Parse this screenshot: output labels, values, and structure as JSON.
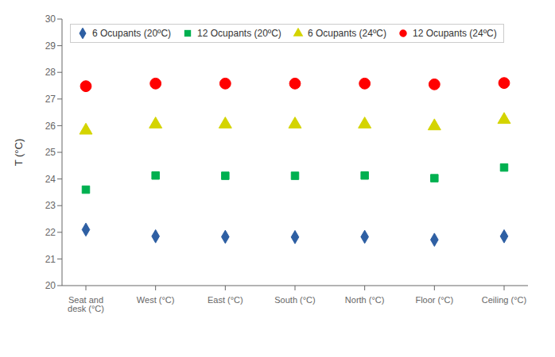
{
  "chart_data": {
    "type": "line",
    "categories": [
      "Seat and desk (°C)",
      "West (°C)",
      "East (°C)",
      "South (°C)",
      "North (°C)",
      "Floor (°C)",
      "Ceiling (°C)"
    ],
    "series": [
      {
        "name": "6 Ocupants (20ºC)",
        "color": "#2e5fa3",
        "marker": "diamond",
        "line_style": "none",
        "values": [
          22.1,
          21.85,
          21.83,
          21.82,
          21.83,
          21.72,
          21.85
        ]
      },
      {
        "name": "12 Ocupants (20ºC)",
        "color": "#00b050",
        "marker": "square",
        "line_style": "none",
        "values": [
          23.6,
          24.13,
          24.12,
          24.12,
          24.13,
          24.03,
          24.43
        ]
      },
      {
        "name": "6 Ocupants (24ºC)",
        "color": "#d4d400",
        "marker": "triangle",
        "line_style": "none",
        "values": [
          25.82,
          26.05,
          26.05,
          26.05,
          26.05,
          25.98,
          26.22
        ]
      },
      {
        "name": "12 Ocupants (24ºC)",
        "color": "#ff0000",
        "marker": "circle",
        "line_style": "none",
        "values": [
          27.48,
          27.58,
          27.58,
          27.58,
          27.58,
          27.55,
          27.6
        ]
      }
    ],
    "ylim": [
      20,
      30
    ],
    "yticks": [
      20,
      21,
      22,
      23,
      24,
      25,
      26,
      27,
      28,
      29,
      30
    ],
    "ylabel": "T (°C)",
    "grid": false,
    "legend": "upper left"
  }
}
